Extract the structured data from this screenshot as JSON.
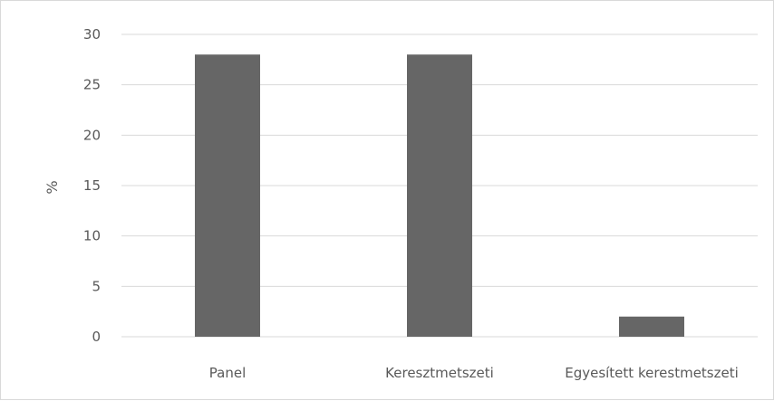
{
  "chart_data": {
    "type": "bar",
    "categories": [
      "Panel",
      "Keresztmetszeti",
      "Egyesített kerestmetszeti"
    ],
    "values": [
      28,
      28,
      2
    ],
    "ylabel": "%",
    "xlabel": "",
    "ylim": [
      0,
      30
    ],
    "yticks": [
      0,
      5,
      10,
      15,
      20,
      25,
      30
    ],
    "grid": true,
    "legend": "none",
    "colors": {
      "bar": "#666666",
      "grid": "#d9d9d9",
      "text": "#595959"
    }
  }
}
